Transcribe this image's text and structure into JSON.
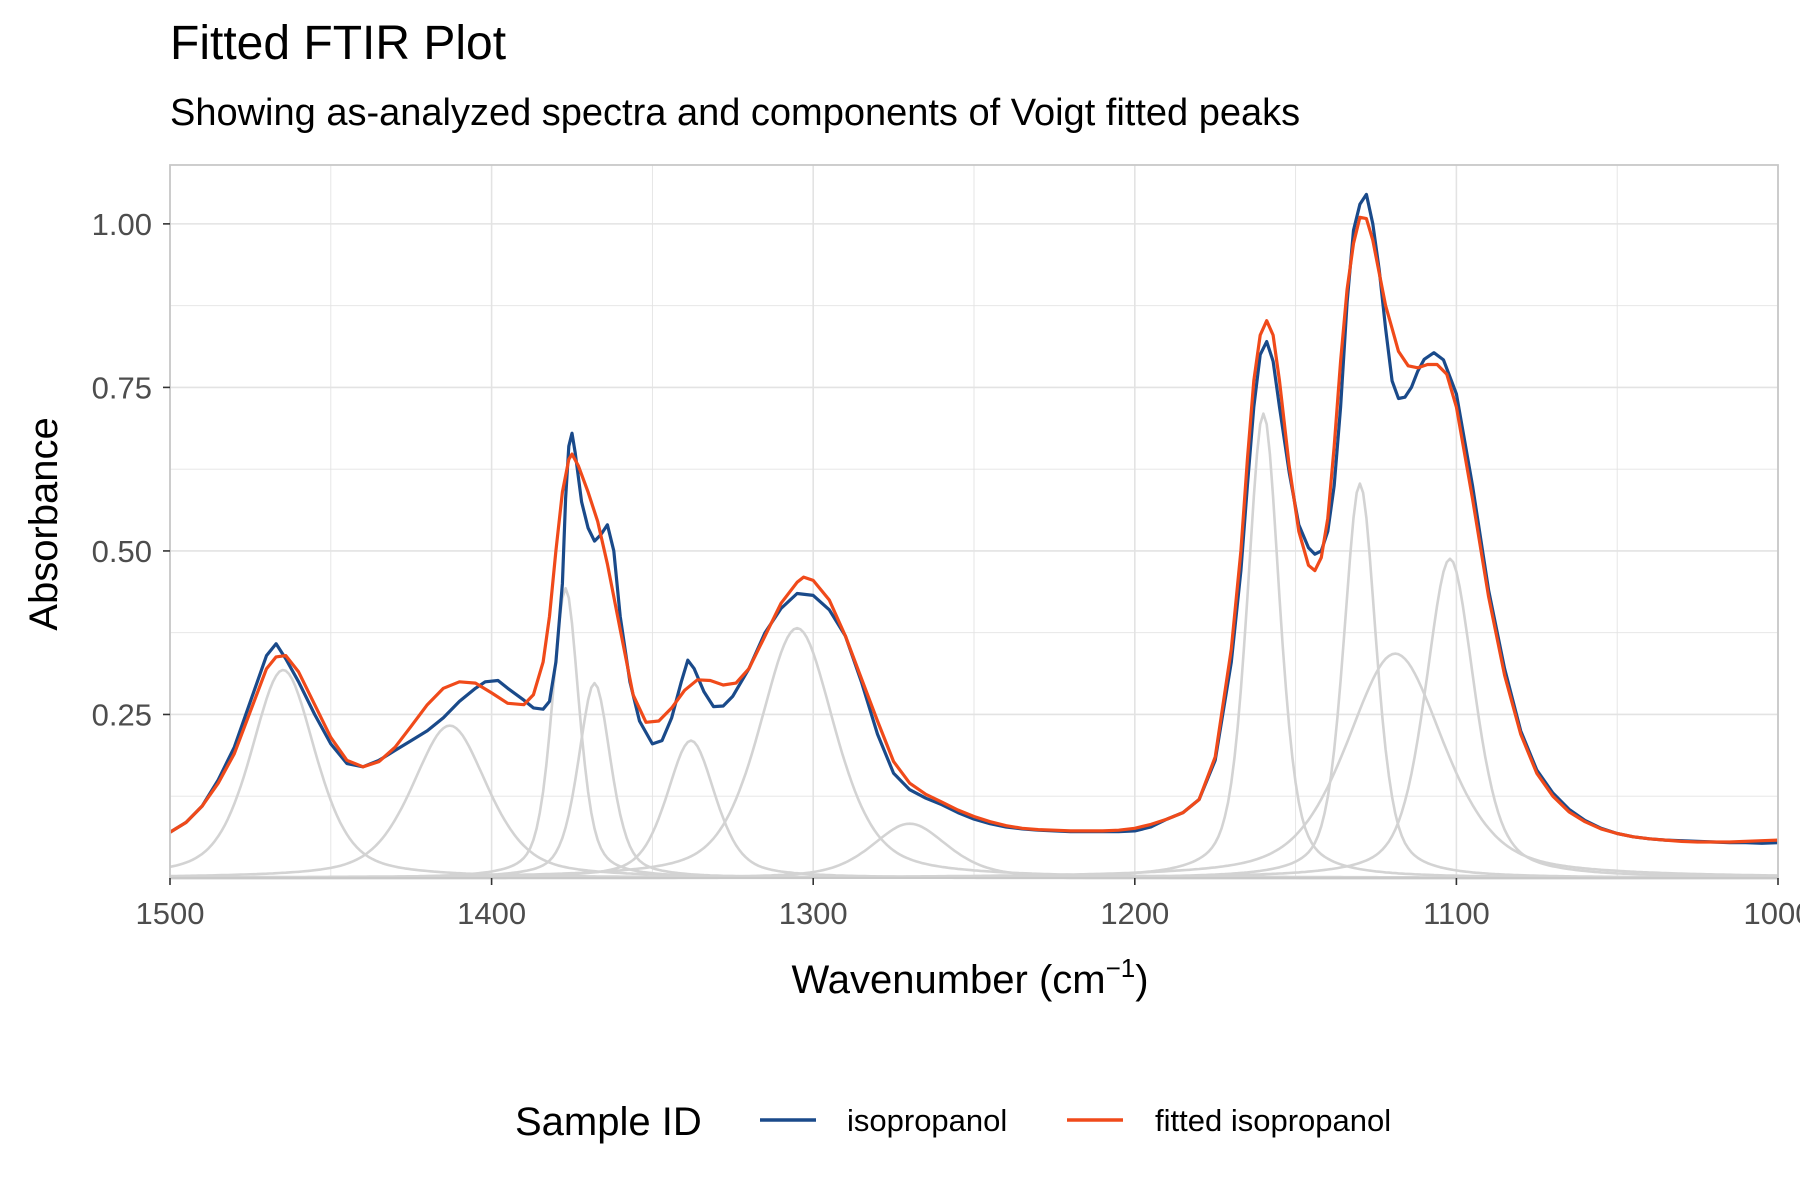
{
  "chart_data": {
    "type": "line",
    "title": "Fitted FTIR Plot",
    "subtitle": "Showing as-analyzed spectra and components of Voigt fitted peaks",
    "xlabel": "Wavenumber (cm",
    "xlabel_sup": "−1",
    "xlabel_close": ")",
    "ylabel": "Absorbance",
    "xlim": [
      1500,
      1000
    ],
    "x_reversed": true,
    "ylim": [
      0,
      1.09
    ],
    "x_ticks": [
      1500,
      1400,
      1300,
      1200,
      1100,
      1000
    ],
    "x_tick_labels": [
      "1500",
      "1400",
      "1300",
      "1200",
      "1100",
      "1000"
    ],
    "y_ticks": [
      0.25,
      0.5,
      0.75,
      1.0
    ],
    "y_tick_labels": [
      "0.25",
      "0.50",
      "0.75",
      "1.00"
    ],
    "grid": true,
    "legend": {
      "title": "Sample ID",
      "position": "bottom",
      "entries": [
        {
          "label": "isopropanol",
          "color": "#1a4a8a"
        },
        {
          "label": "fitted isopropanol",
          "color": "#f04a1a"
        }
      ]
    },
    "colors": {
      "observed": "#1a4a8a",
      "fitted": "#f04a1a",
      "components": "#d3d3d3",
      "grid": "#e3e3e3",
      "panel_border": "#c8c8c8"
    },
    "series": [
      {
        "name": "isopropanol",
        "color": "#1a4a8a",
        "points": [
          [
            1500,
            0.07
          ],
          [
            1495,
            0.085
          ],
          [
            1490,
            0.11
          ],
          [
            1485,
            0.15
          ],
          [
            1480,
            0.2
          ],
          [
            1475,
            0.27
          ],
          [
            1470,
            0.34
          ],
          [
            1467,
            0.358
          ],
          [
            1464,
            0.335
          ],
          [
            1460,
            0.3
          ],
          [
            1455,
            0.25
          ],
          [
            1450,
            0.205
          ],
          [
            1445,
            0.175
          ],
          [
            1440,
            0.17
          ],
          [
            1435,
            0.18
          ],
          [
            1430,
            0.195
          ],
          [
            1425,
            0.21
          ],
          [
            1420,
            0.225
          ],
          [
            1415,
            0.245
          ],
          [
            1410,
            0.27
          ],
          [
            1405,
            0.29
          ],
          [
            1402,
            0.3
          ],
          [
            1398,
            0.302
          ],
          [
            1395,
            0.29
          ],
          [
            1390,
            0.272
          ],
          [
            1387,
            0.26
          ],
          [
            1384,
            0.258
          ],
          [
            1382,
            0.27
          ],
          [
            1380,
            0.33
          ],
          [
            1378,
            0.45
          ],
          [
            1377,
            0.58
          ],
          [
            1376,
            0.66
          ],
          [
            1375,
            0.68
          ],
          [
            1374,
            0.65
          ],
          [
            1372,
            0.575
          ],
          [
            1370,
            0.535
          ],
          [
            1368,
            0.515
          ],
          [
            1366,
            0.525
          ],
          [
            1364,
            0.54
          ],
          [
            1362,
            0.5
          ],
          [
            1360,
            0.4
          ],
          [
            1357,
            0.3
          ],
          [
            1354,
            0.24
          ],
          [
            1350,
            0.205
          ],
          [
            1347,
            0.21
          ],
          [
            1344,
            0.245
          ],
          [
            1341,
            0.3
          ],
          [
            1339,
            0.333
          ],
          [
            1337,
            0.32
          ],
          [
            1334,
            0.285
          ],
          [
            1331,
            0.262
          ],
          [
            1328,
            0.263
          ],
          [
            1325,
            0.278
          ],
          [
            1320,
            0.32
          ],
          [
            1315,
            0.375
          ],
          [
            1310,
            0.412
          ],
          [
            1305,
            0.435
          ],
          [
            1300,
            0.432
          ],
          [
            1295,
            0.41
          ],
          [
            1290,
            0.37
          ],
          [
            1285,
            0.3
          ],
          [
            1280,
            0.22
          ],
          [
            1275,
            0.16
          ],
          [
            1270,
            0.135
          ],
          [
            1265,
            0.122
          ],
          [
            1260,
            0.112
          ],
          [
            1255,
            0.1
          ],
          [
            1250,
            0.09
          ],
          [
            1245,
            0.083
          ],
          [
            1240,
            0.078
          ],
          [
            1235,
            0.075
          ],
          [
            1230,
            0.073
          ],
          [
            1225,
            0.072
          ],
          [
            1220,
            0.071
          ],
          [
            1215,
            0.071
          ],
          [
            1210,
            0.071
          ],
          [
            1205,
            0.071
          ],
          [
            1200,
            0.072
          ],
          [
            1195,
            0.078
          ],
          [
            1190,
            0.09
          ],
          [
            1185,
            0.1
          ],
          [
            1180,
            0.12
          ],
          [
            1175,
            0.18
          ],
          [
            1170,
            0.33
          ],
          [
            1167,
            0.47
          ],
          [
            1165,
            0.6
          ],
          [
            1163,
            0.72
          ],
          [
            1161,
            0.8
          ],
          [
            1159,
            0.82
          ],
          [
            1157,
            0.79
          ],
          [
            1155,
            0.72
          ],
          [
            1152,
            0.62
          ],
          [
            1149,
            0.54
          ],
          [
            1146,
            0.505
          ],
          [
            1144,
            0.495
          ],
          [
            1142,
            0.5
          ],
          [
            1140,
            0.53
          ],
          [
            1138,
            0.6
          ],
          [
            1136,
            0.72
          ],
          [
            1134,
            0.88
          ],
          [
            1132,
            0.99
          ],
          [
            1130,
            1.03
          ],
          [
            1128,
            1.045
          ],
          [
            1126,
            1.0
          ],
          [
            1124,
            0.93
          ],
          [
            1122,
            0.84
          ],
          [
            1120,
            0.76
          ],
          [
            1118,
            0.733
          ],
          [
            1116,
            0.735
          ],
          [
            1114,
            0.75
          ],
          [
            1112,
            0.775
          ],
          [
            1110,
            0.793
          ],
          [
            1107,
            0.803
          ],
          [
            1104,
            0.792
          ],
          [
            1100,
            0.74
          ],
          [
            1095,
            0.6
          ],
          [
            1090,
            0.44
          ],
          [
            1085,
            0.32
          ],
          [
            1080,
            0.225
          ],
          [
            1075,
            0.165
          ],
          [
            1070,
            0.13
          ],
          [
            1065,
            0.105
          ],
          [
            1060,
            0.088
          ],
          [
            1055,
            0.076
          ],
          [
            1050,
            0.068
          ],
          [
            1045,
            0.063
          ],
          [
            1040,
            0.06
          ],
          [
            1035,
            0.058
          ],
          [
            1030,
            0.057
          ],
          [
            1025,
            0.056
          ],
          [
            1020,
            0.055
          ],
          [
            1015,
            0.054
          ],
          [
            1010,
            0.054
          ],
          [
            1005,
            0.053
          ],
          [
            1000,
            0.054
          ]
        ]
      },
      {
        "name": "fitted isopropanol",
        "color": "#f04a1a",
        "points": [
          [
            1500,
            0.07
          ],
          [
            1495,
            0.085
          ],
          [
            1490,
            0.11
          ],
          [
            1485,
            0.145
          ],
          [
            1480,
            0.19
          ],
          [
            1475,
            0.255
          ],
          [
            1470,
            0.32
          ],
          [
            1467,
            0.338
          ],
          [
            1464,
            0.34
          ],
          [
            1460,
            0.315
          ],
          [
            1455,
            0.265
          ],
          [
            1450,
            0.215
          ],
          [
            1445,
            0.18
          ],
          [
            1440,
            0.17
          ],
          [
            1435,
            0.178
          ],
          [
            1430,
            0.2
          ],
          [
            1425,
            0.232
          ],
          [
            1420,
            0.265
          ],
          [
            1415,
            0.29
          ],
          [
            1410,
            0.3
          ],
          [
            1405,
            0.298
          ],
          [
            1400,
            0.283
          ],
          [
            1395,
            0.267
          ],
          [
            1390,
            0.265
          ],
          [
            1387,
            0.28
          ],
          [
            1384,
            0.33
          ],
          [
            1382,
            0.4
          ],
          [
            1380,
            0.5
          ],
          [
            1378,
            0.59
          ],
          [
            1376,
            0.64
          ],
          [
            1375,
            0.648
          ],
          [
            1373,
            0.63
          ],
          [
            1370,
            0.59
          ],
          [
            1367,
            0.545
          ],
          [
            1364,
            0.48
          ],
          [
            1360,
            0.38
          ],
          [
            1356,
            0.28
          ],
          [
            1352,
            0.238
          ],
          [
            1348,
            0.24
          ],
          [
            1344,
            0.26
          ],
          [
            1340,
            0.287
          ],
          [
            1336,
            0.303
          ],
          [
            1332,
            0.302
          ],
          [
            1328,
            0.295
          ],
          [
            1324,
            0.298
          ],
          [
            1320,
            0.32
          ],
          [
            1315,
            0.37
          ],
          [
            1310,
            0.42
          ],
          [
            1305,
            0.452
          ],
          [
            1303,
            0.46
          ],
          [
            1300,
            0.455
          ],
          [
            1295,
            0.425
          ],
          [
            1290,
            0.37
          ],
          [
            1285,
            0.305
          ],
          [
            1280,
            0.24
          ],
          [
            1275,
            0.178
          ],
          [
            1270,
            0.145
          ],
          [
            1265,
            0.128
          ],
          [
            1260,
            0.116
          ],
          [
            1255,
            0.104
          ],
          [
            1250,
            0.094
          ],
          [
            1245,
            0.086
          ],
          [
            1240,
            0.08
          ],
          [
            1235,
            0.076
          ],
          [
            1230,
            0.074
          ],
          [
            1225,
            0.073
          ],
          [
            1220,
            0.072
          ],
          [
            1215,
            0.072
          ],
          [
            1210,
            0.072
          ],
          [
            1205,
            0.073
          ],
          [
            1200,
            0.076
          ],
          [
            1195,
            0.082
          ],
          [
            1190,
            0.09
          ],
          [
            1185,
            0.1
          ],
          [
            1180,
            0.12
          ],
          [
            1175,
            0.185
          ],
          [
            1170,
            0.35
          ],
          [
            1167,
            0.5
          ],
          [
            1165,
            0.64
          ],
          [
            1163,
            0.76
          ],
          [
            1161,
            0.83
          ],
          [
            1159,
            0.852
          ],
          [
            1157,
            0.83
          ],
          [
            1155,
            0.76
          ],
          [
            1152,
            0.63
          ],
          [
            1149,
            0.53
          ],
          [
            1146,
            0.478
          ],
          [
            1144,
            0.47
          ],
          [
            1142,
            0.49
          ],
          [
            1140,
            0.55
          ],
          [
            1138,
            0.66
          ],
          [
            1136,
            0.79
          ],
          [
            1134,
            0.9
          ],
          [
            1132,
            0.97
          ],
          [
            1130,
            1.01
          ],
          [
            1128,
            1.008
          ],
          [
            1126,
            0.975
          ],
          [
            1124,
            0.925
          ],
          [
            1122,
            0.875
          ],
          [
            1120,
            0.84
          ],
          [
            1118,
            0.805
          ],
          [
            1115,
            0.783
          ],
          [
            1112,
            0.78
          ],
          [
            1109,
            0.785
          ],
          [
            1106,
            0.785
          ],
          [
            1103,
            0.77
          ],
          [
            1100,
            0.72
          ],
          [
            1095,
            0.58
          ],
          [
            1090,
            0.43
          ],
          [
            1085,
            0.31
          ],
          [
            1080,
            0.22
          ],
          [
            1075,
            0.16
          ],
          [
            1070,
            0.125
          ],
          [
            1065,
            0.101
          ],
          [
            1060,
            0.086
          ],
          [
            1055,
            0.075
          ],
          [
            1050,
            0.068
          ],
          [
            1045,
            0.063
          ],
          [
            1040,
            0.06
          ],
          [
            1035,
            0.058
          ],
          [
            1030,
            0.056
          ],
          [
            1025,
            0.055
          ],
          [
            1020,
            0.055
          ],
          [
            1015,
            0.055
          ],
          [
            1010,
            0.056
          ],
          [
            1005,
            0.057
          ],
          [
            1000,
            0.058
          ]
        ]
      }
    ],
    "components": [
      {
        "center": 1464.8,
        "amplitude": 0.318,
        "gamma": 12
      },
      {
        "center": 1413,
        "amplitude": 0.233,
        "gamma": 14
      },
      {
        "center": 1377,
        "amplitude": 0.443,
        "gamma": 5
      },
      {
        "center": 1368,
        "amplitude": 0.298,
        "gamma": 6
      },
      {
        "center": 1338,
        "amplitude": 0.21,
        "gamma": 9
      },
      {
        "center": 1305,
        "amplitude": 0.382,
        "gamma": 14
      },
      {
        "center": 1270,
        "amplitude": 0.083,
        "gamma": 14
      },
      {
        "center": 1160,
        "amplitude": 0.71,
        "gamma": 6
      },
      {
        "center": 1130,
        "amplitude": 0.603,
        "gamma": 6
      },
      {
        "center": 1119,
        "amplitude": 0.343,
        "gamma": 18
      },
      {
        "center": 1102,
        "amplitude": 0.488,
        "gamma": 9
      }
    ]
  }
}
